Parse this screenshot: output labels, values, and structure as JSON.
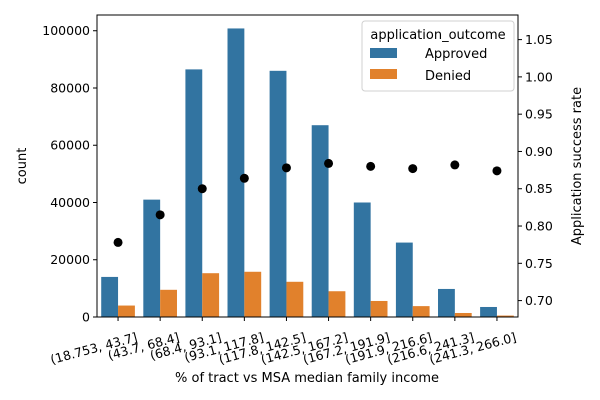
{
  "chart_data": {
    "type": "bar",
    "categories": [
      "(18.753, 43.7]",
      "(43.7, 68.4]",
      "(68.4, 93.1]",
      "(93.1, 117.8]",
      "(117.8, 142.5]",
      "(142.5, 167.2]",
      "(167.2, 191.9]",
      "(191.9, 216.6]",
      "(216.6, 241.3]",
      "(241.3, 266.0]"
    ],
    "xlabel": "% of tract vs MSA median family income",
    "ylabel": "count",
    "y2label": "Application success rate",
    "ylim": [
      0,
      105500
    ],
    "y2lim": [
      0.678,
      1.083
    ],
    "yticks": [
      0,
      20000,
      40000,
      60000,
      80000,
      100000
    ],
    "y2ticks": [
      0.7,
      0.75,
      0.8,
      0.85,
      0.9,
      0.95,
      1.0,
      1.05
    ],
    "legend": {
      "title": "application_outcome",
      "position": "top-right"
    },
    "series": [
      {
        "name": "Approved",
        "color": "#3274a1",
        "axis": "left",
        "kind": "bar",
        "values": [
          14000,
          41000,
          86500,
          100800,
          86000,
          67000,
          40000,
          26000,
          9800,
          3500
        ]
      },
      {
        "name": "Denied",
        "color": "#e1812c",
        "axis": "left",
        "kind": "bar",
        "values": [
          4000,
          9500,
          15300,
          15800,
          12300,
          9000,
          5600,
          3800,
          1400,
          500
        ]
      },
      {
        "name": "",
        "color": "#000000",
        "axis": "right",
        "kind": "scatter",
        "values": [
          0.778,
          0.815,
          0.85,
          0.864,
          0.878,
          0.884,
          0.88,
          0.877,
          0.882,
          0.874
        ]
      }
    ]
  }
}
